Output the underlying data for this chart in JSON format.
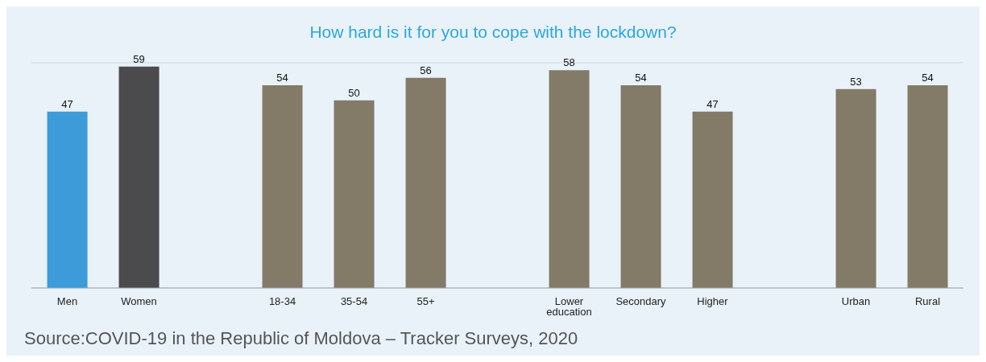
{
  "chart_data": {
    "type": "bar",
    "title": "How hard is it for you to cope with the lockdown?",
    "categories": [
      "Men",
      "Women",
      null,
      "18-34",
      "35-54",
      "55+",
      null,
      "Lower education",
      "Secondary",
      "Higher",
      null,
      "Urban",
      "Rural"
    ],
    "values": [
      47,
      59,
      null,
      54,
      50,
      56,
      null,
      58,
      54,
      47,
      null,
      53,
      54
    ],
    "colors": [
      "#3d9bd9",
      "#4b4b4d",
      null,
      "#837a67",
      "#837a67",
      "#837a67",
      null,
      "#837a67",
      "#837a67",
      "#837a67",
      null,
      "#837a67",
      "#837a67"
    ],
    "ylim": [
      0,
      60
    ],
    "tick_labels": "x",
    "grid": "y",
    "data_labels": true,
    "annotations": [
      "Source:COVID-19 in the Republic of Moldova – Tracker Surveys, 2020"
    ]
  }
}
